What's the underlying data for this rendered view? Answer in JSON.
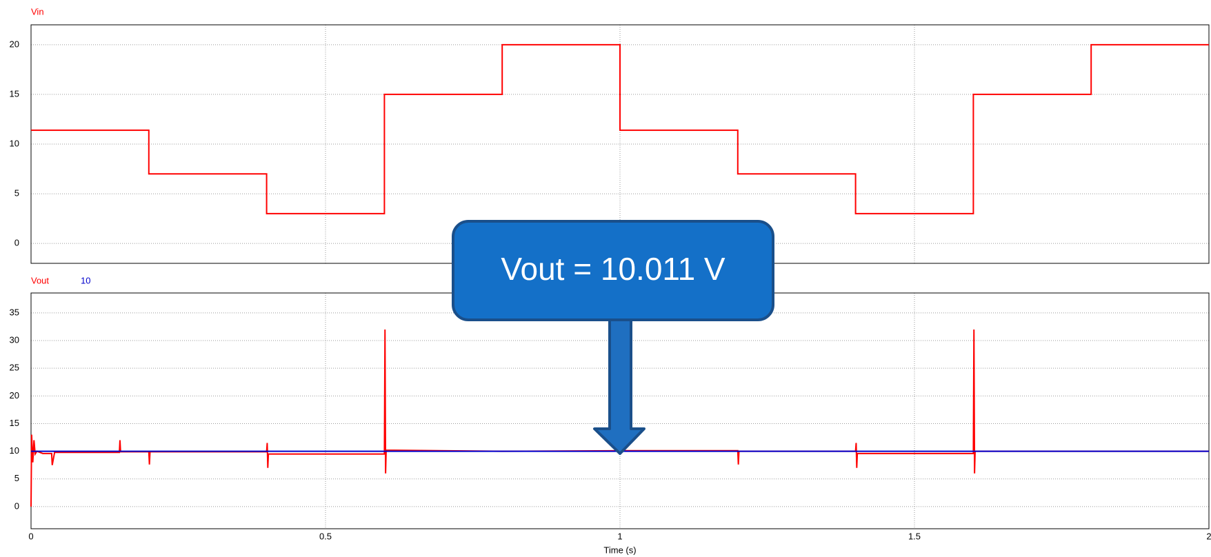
{
  "chart_data": [
    {
      "type": "line",
      "xlim": [
        0,
        2
      ],
      "xticks": [
        0,
        0.5,
        1,
        1.5,
        2
      ],
      "ylim": [
        -2,
        22
      ],
      "yticks": [
        0,
        5,
        10,
        15,
        20
      ],
      "grid": true,
      "series": [
        {
          "name": "Vin",
          "color": "#ff0000",
          "x": [
            0,
            0.2,
            0.2,
            0.4,
            0.4,
            0.6,
            0.6,
            0.8,
            0.8,
            1.0,
            1.0,
            1.2,
            1.2,
            1.4,
            1.4,
            1.6,
            1.6,
            1.8,
            1.8,
            2.0
          ],
          "values": [
            11.4,
            11.4,
            7,
            7,
            3,
            3,
            15,
            15,
            20,
            20,
            11.4,
            11.4,
            7,
            7,
            3,
            3,
            15,
            15,
            20,
            20
          ]
        }
      ]
    },
    {
      "type": "line",
      "xlim": [
        0,
        2
      ],
      "xticks": [
        0,
        0.5,
        1,
        1.5,
        2
      ],
      "ylim": [
        -4,
        38.6
      ],
      "yticks": [
        0,
        5,
        10,
        15,
        20,
        25,
        30,
        35
      ],
      "grid": true,
      "xlabel": "Time (s)",
      "annotation": "Vout = 10.011 V",
      "series": [
        {
          "name": "Vout",
          "color": "#ff0000",
          "x": [
            0,
            0.001,
            0.003,
            0.005,
            0.007,
            0.01,
            0.02,
            0.035,
            0.036,
            0.04,
            0.15,
            0.151,
            0.152,
            0.2,
            0.201,
            0.202,
            0.4,
            0.401,
            0.402,
            0.403,
            0.6,
            0.601,
            0.602,
            0.603,
            0.8,
            1.0,
            1.2,
            1.201,
            1.202,
            1.4,
            1.401,
            1.402,
            1.403,
            1.6,
            1.601,
            1.602,
            1.603,
            1.8,
            2.0
          ],
          "values": [
            0,
            13,
            8,
            12,
            9.5,
            10,
            9.6,
            9.6,
            7.5,
            9.8,
            9.8,
            12,
            9.9,
            9.9,
            7.6,
            9.9,
            9.9,
            11.5,
            7,
            9.5,
            9.5,
            32,
            6,
            10.2,
            10,
            10.1,
            10.1,
            7.6,
            10,
            10,
            11.5,
            7,
            9.6,
            9.6,
            32,
            6,
            10,
            10,
            10
          ]
        },
        {
          "name": "10",
          "color": "#0000cc",
          "x": [
            0,
            2
          ],
          "values": [
            10,
            10
          ]
        }
      ]
    }
  ]
}
